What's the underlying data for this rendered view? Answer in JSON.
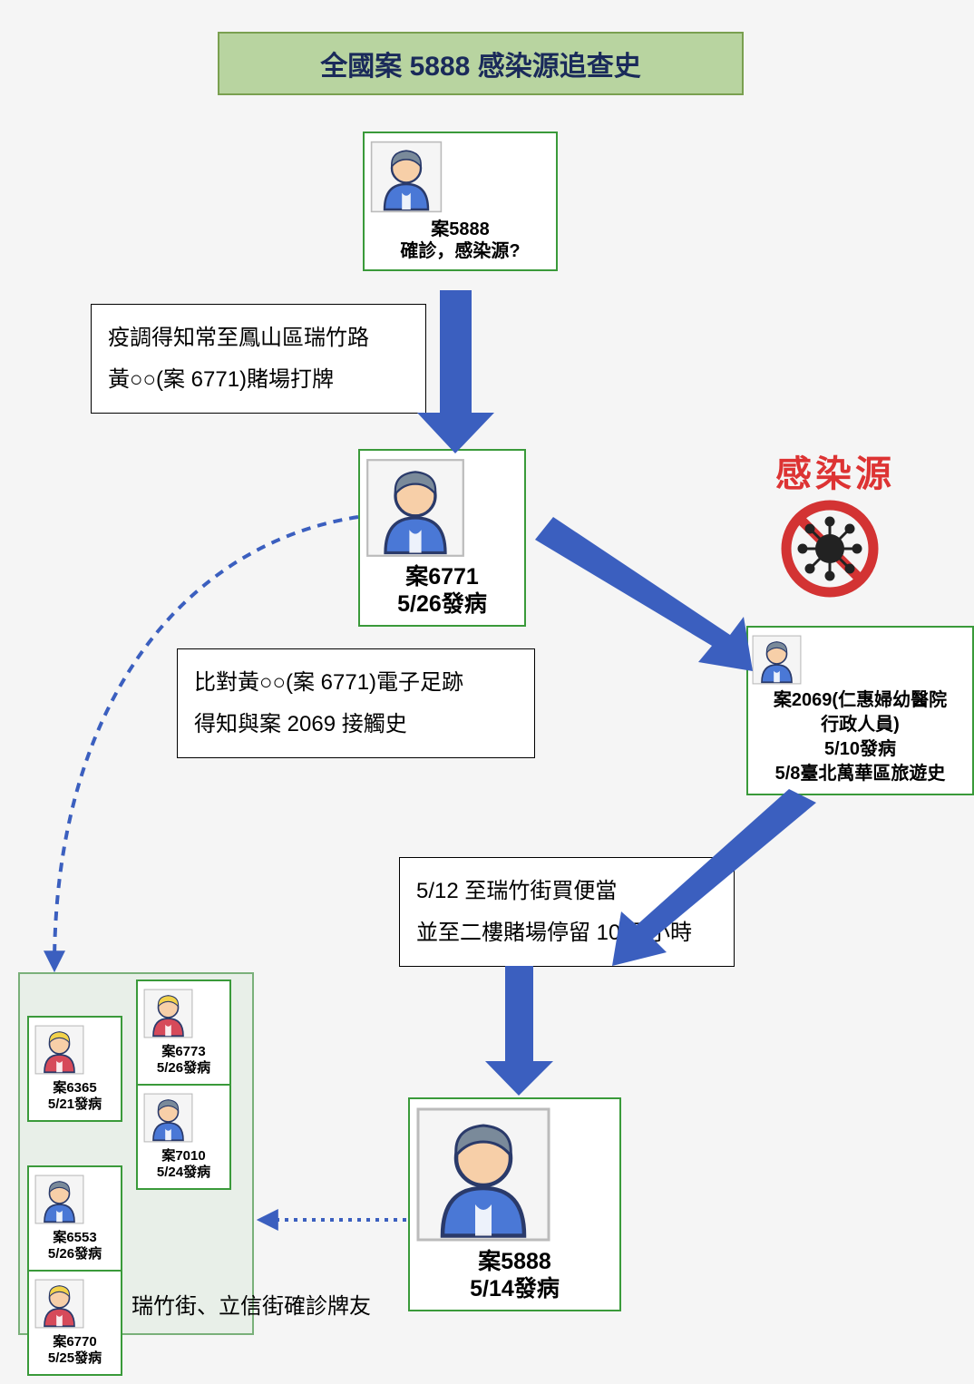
{
  "title": "全國案 5888 感染源追查史",
  "colors": {
    "arrow_fill": "#3b5fbf",
    "dashed": "#3b5fbf",
    "node_border": "#3a9a3a",
    "title_bg": "#b8d4a0",
    "title_border": "#7aa050",
    "source_red": "#d33333",
    "bg": "#f5f5f5",
    "avatar_skin": "#f7cfa8",
    "avatar_hair_grey": "#7a8a9a",
    "avatar_hair_yellow": "#f2d24a",
    "avatar_shirt_blue": "#4a78d6",
    "avatar_shirt_red": "#d64a5a",
    "avatar_outline": "#2a3a6a"
  },
  "nodes": {
    "n5888_top": {
      "label": "案5888",
      "sub": "確診，感染源?",
      "hair": "grey",
      "shirt": "blue"
    },
    "n6771": {
      "label": "案6771",
      "sub": "5/26發病",
      "hair": "grey",
      "shirt": "blue"
    },
    "n2069": {
      "label": "案2069(仁惠婦幼醫院",
      "sub1": "行政人員)",
      "sub2": "5/10發病",
      "sub3": "5/8臺北萬華區旅遊史",
      "hair": "grey",
      "shirt": "blue"
    },
    "n5888_bottom": {
      "label": "案5888",
      "sub": "5/14發病",
      "hair": "grey",
      "shirt": "blue"
    },
    "n6365": {
      "label": "案6365",
      "sub": "5/21發病",
      "hair": "yellow",
      "shirt": "red"
    },
    "n6773": {
      "label": "案6773",
      "sub": "5/26發病",
      "hair": "yellow",
      "shirt": "red"
    },
    "n7010": {
      "label": "案7010",
      "sub": "5/24發病",
      "hair": "grey",
      "shirt": "blue"
    },
    "n6553": {
      "label": "案6553",
      "sub": "5/26發病",
      "hair": "grey",
      "shirt": "blue"
    },
    "n6770": {
      "label": "案6770",
      "sub": "5/25發病",
      "hair": "yellow",
      "shirt": "red"
    }
  },
  "info": {
    "box1_line1": "疫調得知常至鳳山區瑞竹路",
    "box1_line2": "黃○○(案 6771)賭場打牌",
    "box2_line1": "比對黃○○(案 6771)電子足跡",
    "box2_line2": "得知與案 2069 接觸史",
    "box3_line1": "5/12 至瑞竹街買便當",
    "box3_line2": "並至二樓賭場停留 10 個小時"
  },
  "cluster_caption": "瑞竹街、立信街確診牌友",
  "source_label": "感染源"
}
